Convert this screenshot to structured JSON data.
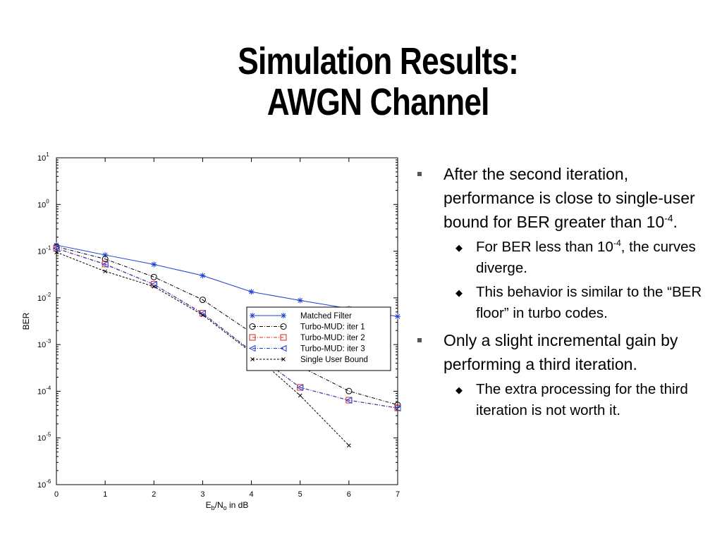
{
  "slide": {
    "title_line1": "Simulation Results:",
    "title_line2": "AWGN Channel"
  },
  "bullets": [
    {
      "level": 1,
      "text": "After the second iteration, performance is close to single-user bound for BER greater than 10",
      "sup": "-4",
      "after": "."
    },
    {
      "level": 2,
      "text": "For BER less than 10",
      "sup": "-4",
      "after": ", the curves diverge."
    },
    {
      "level": 2,
      "text": "This behavior is similar to the “BER floor” in turbo codes.",
      "sup": "",
      "after": ""
    },
    {
      "level": 1,
      "text": "Only a slight incremental gain by performing a third iteration.",
      "sup": "",
      "after": ""
    },
    {
      "level": 2,
      "text": "The extra processing for the third iteration is not worth it.",
      "sup": "",
      "after": ""
    }
  ],
  "chart_data": {
    "type": "line",
    "yscale": "log",
    "ylabel": "BER",
    "xlabel_parts": {
      "E": "E",
      "b": "b",
      "slash": "/N",
      "o": "o",
      "rest": " in dB"
    },
    "xlim": [
      0,
      7
    ],
    "ylim_exponents": [
      -6,
      1
    ],
    "xticks": [
      "0",
      "1",
      "2",
      "3",
      "4",
      "5",
      "6",
      "7"
    ],
    "yticks": [
      {
        "base": "10",
        "exp": "1"
      },
      {
        "base": "10",
        "exp": "0"
      },
      {
        "base": "10",
        "exp": "-1"
      },
      {
        "base": "10",
        "exp": "-2"
      },
      {
        "base": "10",
        "exp": "-3"
      },
      {
        "base": "10",
        "exp": "-4"
      },
      {
        "base": "10",
        "exp": "-5"
      },
      {
        "base": "10",
        "exp": "-6"
      }
    ],
    "grid": false,
    "legend_position": "top-right",
    "series": [
      {
        "name": "Matched Filter",
        "color": "#1f3fd6",
        "marker": "star",
        "dash": "",
        "x": [
          0,
          1,
          2,
          3,
          4,
          5,
          6,
          7
        ],
        "y": [
          0.135,
          0.083,
          0.052,
          0.03,
          0.0135,
          0.0088,
          0.0059,
          0.004
        ]
      },
      {
        "name": "Turbo-MUD: iter 1",
        "color": "#000000",
        "marker": "circle",
        "dash": "5,2,1,2",
        "x": [
          0,
          1,
          2,
          3,
          4,
          5,
          6,
          7
        ],
        "y": [
          0.125,
          0.068,
          0.028,
          0.0091,
          0.0018,
          0.00034,
          0.000101,
          5.1e-05
        ]
      },
      {
        "name": "Turbo-MUD: iter 2",
        "color": "#e0201f",
        "marker": "square",
        "dash": "5,2,1,2",
        "x": [
          0,
          1,
          2,
          3,
          4,
          5,
          6,
          7
        ],
        "y": [
          0.115,
          0.053,
          0.0195,
          0.0047,
          0.00073,
          0.000121,
          6.45e-05,
          4.4e-05
        ]
      },
      {
        "name": "Turbo-MUD: iter 3",
        "color": "#1f3fd6",
        "marker": "triangle-left",
        "dash": "5,2,1,2",
        "x": [
          0,
          1,
          2,
          3,
          4,
          5,
          6,
          7
        ],
        "y": [
          0.114,
          0.052,
          0.0193,
          0.0046,
          0.00072,
          0.00012,
          6.4e-05,
          4.35e-05
        ]
      },
      {
        "name": "Single User Bound",
        "color": "#000000",
        "marker": "x",
        "dash": "3,2",
        "x": [
          0,
          1,
          2,
          3,
          4,
          5,
          6
        ],
        "y": [
          0.095,
          0.037,
          0.0175,
          0.0043,
          0.00068,
          8.1e-05,
          6.9e-06
        ]
      }
    ]
  }
}
